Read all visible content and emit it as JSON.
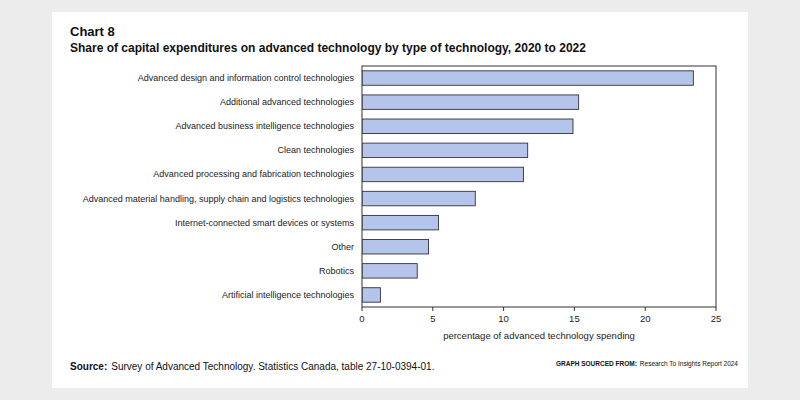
{
  "chart_data": {
    "type": "bar",
    "orientation": "horizontal",
    "title": "Chart 8",
    "subtitle": "Share of capital expenditures on advanced technology by type of technology, 2020 to 2022",
    "categories": [
      "Advanced design and information control technologies",
      "Additional advanced technologies",
      "Advanced business intelligence technologies",
      "Clean technologies",
      "Advanced processing and fabrication technologies",
      "Advanced material handling, supply chain and logistics technologies",
      "Internet-connected smart devices or systems",
      "Other",
      "Robotics",
      "Artificial intelligence technologies"
    ],
    "values": [
      23.4,
      15.3,
      14.9,
      11.7,
      11.4,
      8.0,
      5.4,
      4.7,
      3.9,
      1.3
    ],
    "color": "#b4c4ea",
    "xlabel": "percentage of advanced technology spending",
    "xlim": [
      0,
      25
    ],
    "xticks": [
      0,
      5,
      10,
      15,
      20,
      25
    ],
    "grid": false,
    "annotations": [
      {
        "label": "Source:",
        "text": "Survey of Advanced Technology. Statistics Canada, table 27-10-0394-01."
      },
      {
        "label": "GRAPH SOURCED FROM:",
        "text": "Research To Insights Report 2024"
      }
    ]
  }
}
